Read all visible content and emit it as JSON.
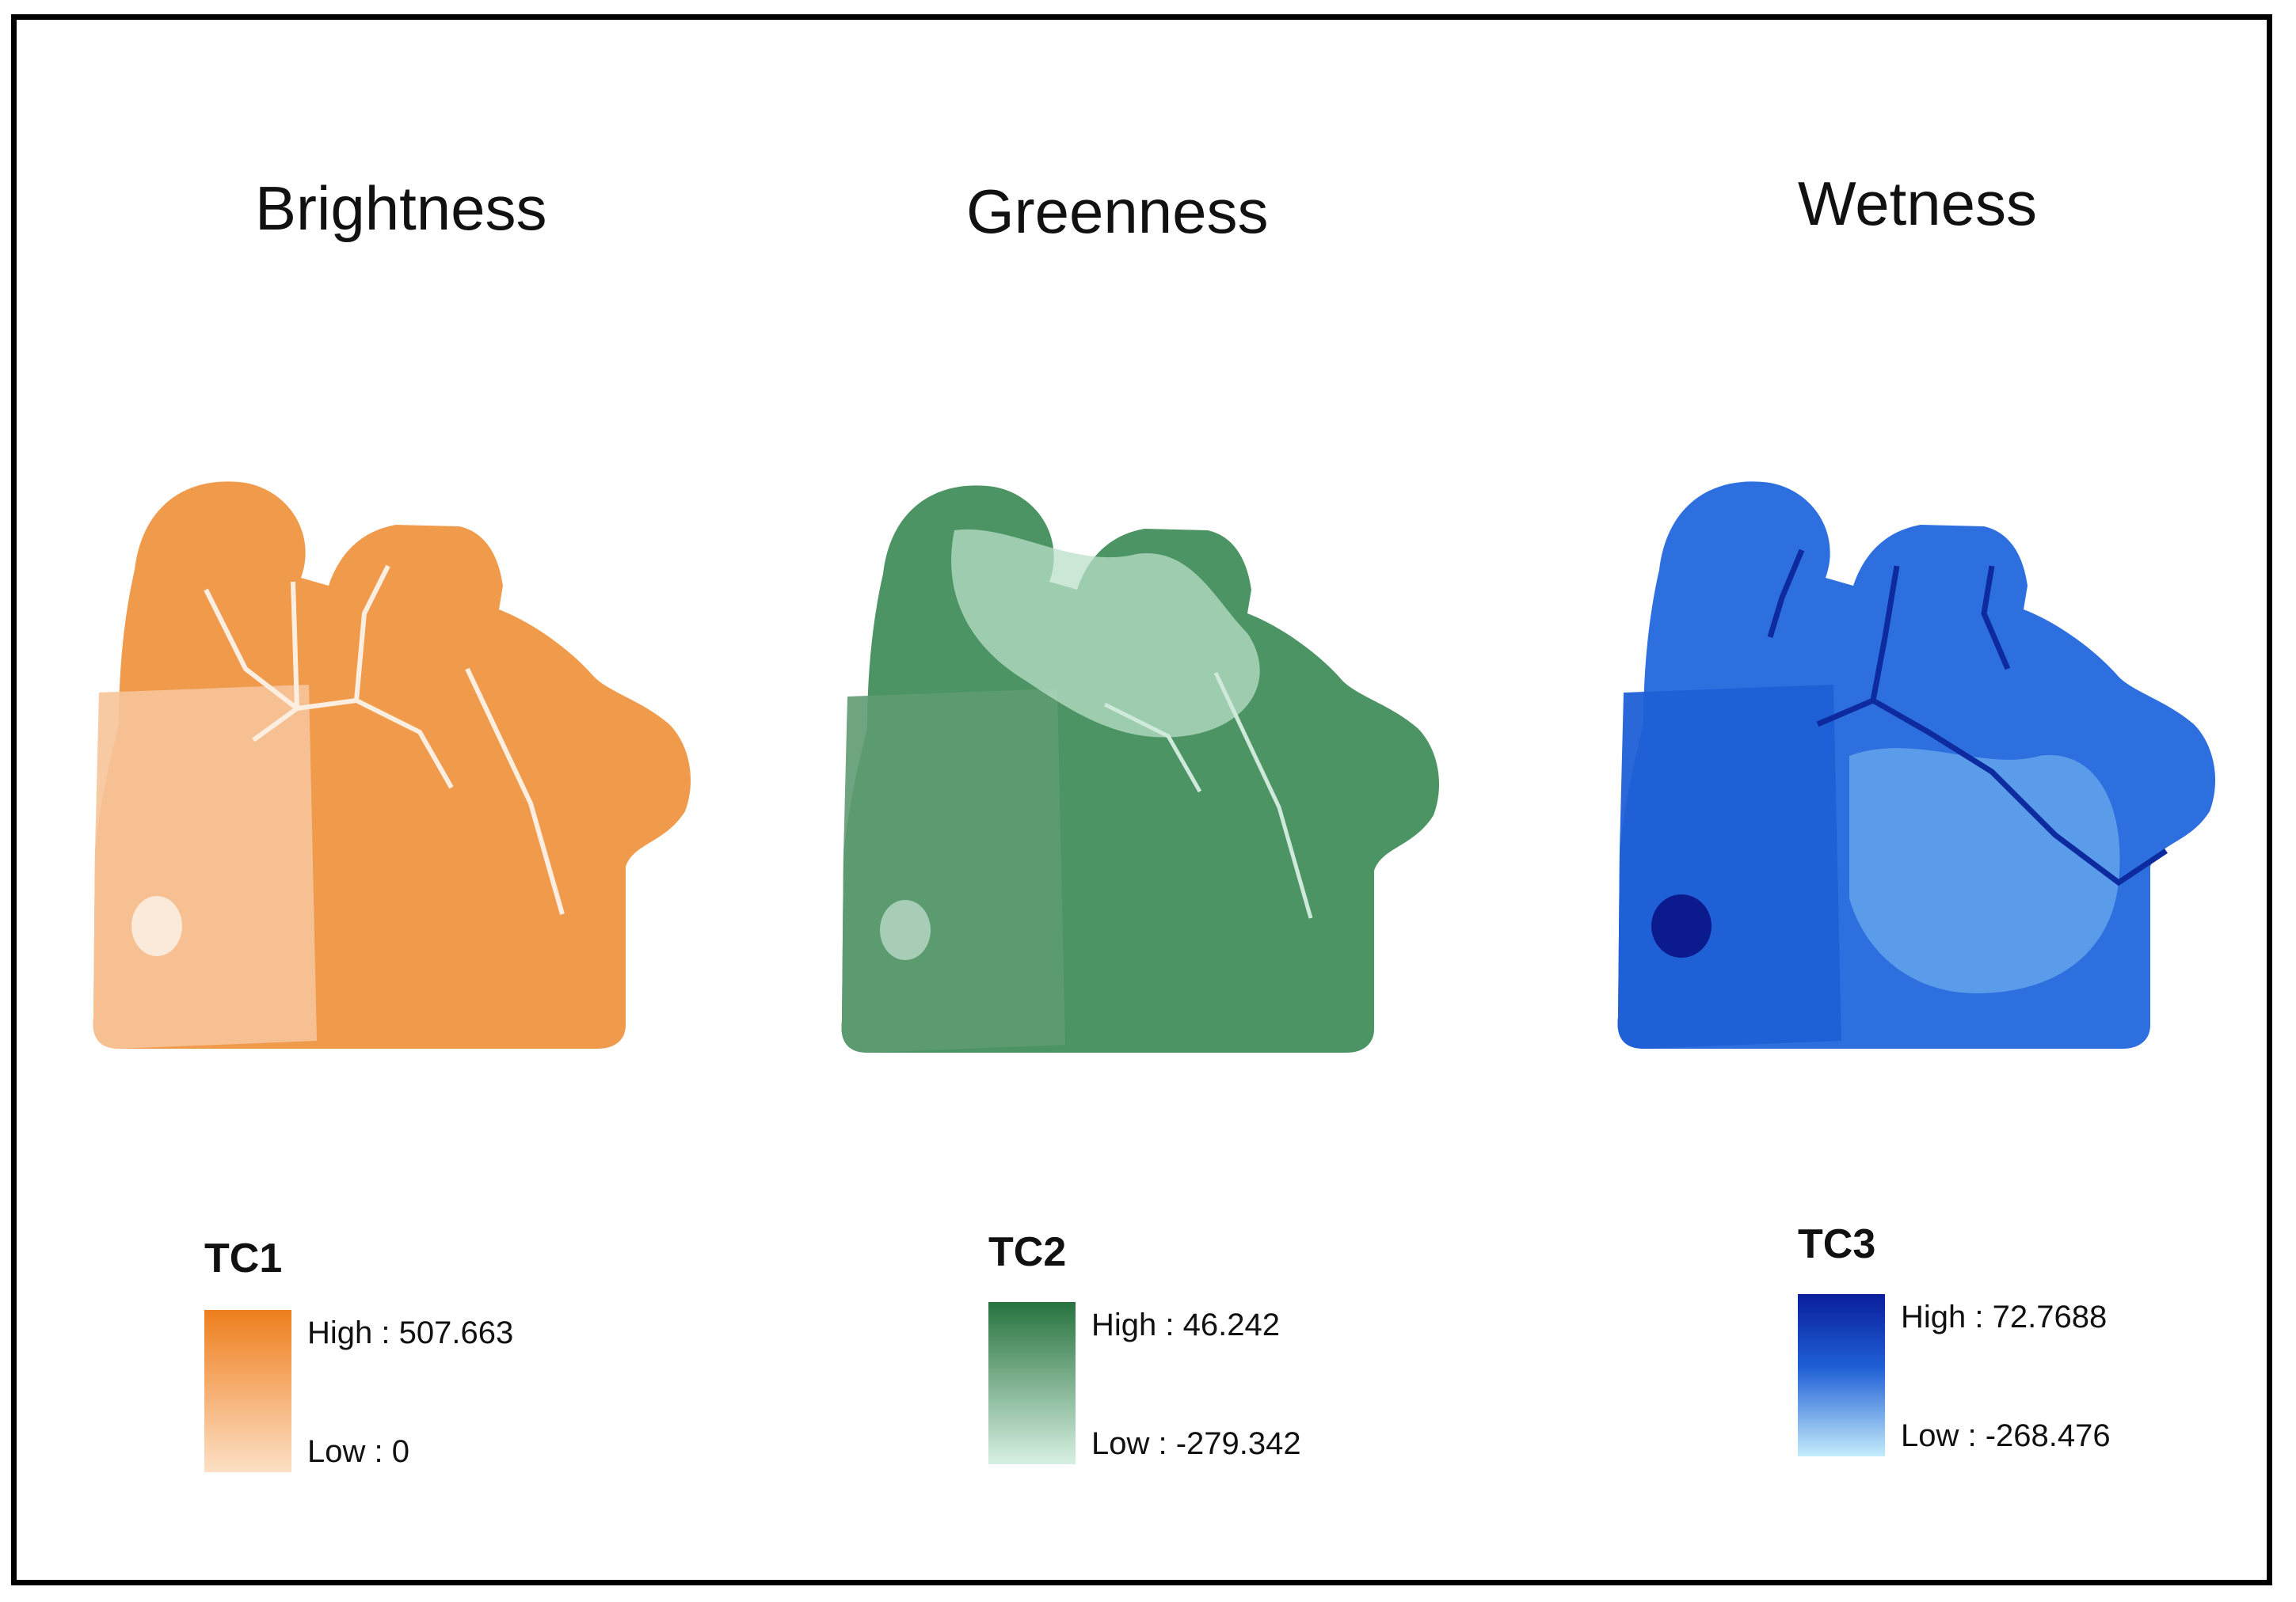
{
  "panels": [
    {
      "id": "brightness",
      "title": "Brightness",
      "legend_title": "TC1",
      "high_label": "High : 507.663",
      "low_label": "Low : 0",
      "colors": {
        "high": "#ee7e1d",
        "mid": "#f3a05a",
        "low": "#fde0c6",
        "lake": "#fbe9d9",
        "roads": "#fcefe2"
      }
    },
    {
      "id": "greenness",
      "title": "Greenness",
      "legend_title": "TC2",
      "high_label": "High : 46.242",
      "low_label": "Low : -279.342",
      "colors": {
        "high": "#27733e",
        "mid": "#4d9464",
        "low": "#d8f0e3",
        "lake": "#a8cdb6",
        "roads": "#cfe9db"
      }
    },
    {
      "id": "wetness",
      "title": "Wetness",
      "legend_title": "TC3",
      "high_label": "High : 72.7688",
      "low_label": "Low : -268.476",
      "colors": {
        "high": "#0a1e9c",
        "mid": "#1f5fd6",
        "low": "#c4ecfb",
        "lake": "#0b1a8c",
        "roads": "#0d2a9e"
      }
    }
  ]
}
